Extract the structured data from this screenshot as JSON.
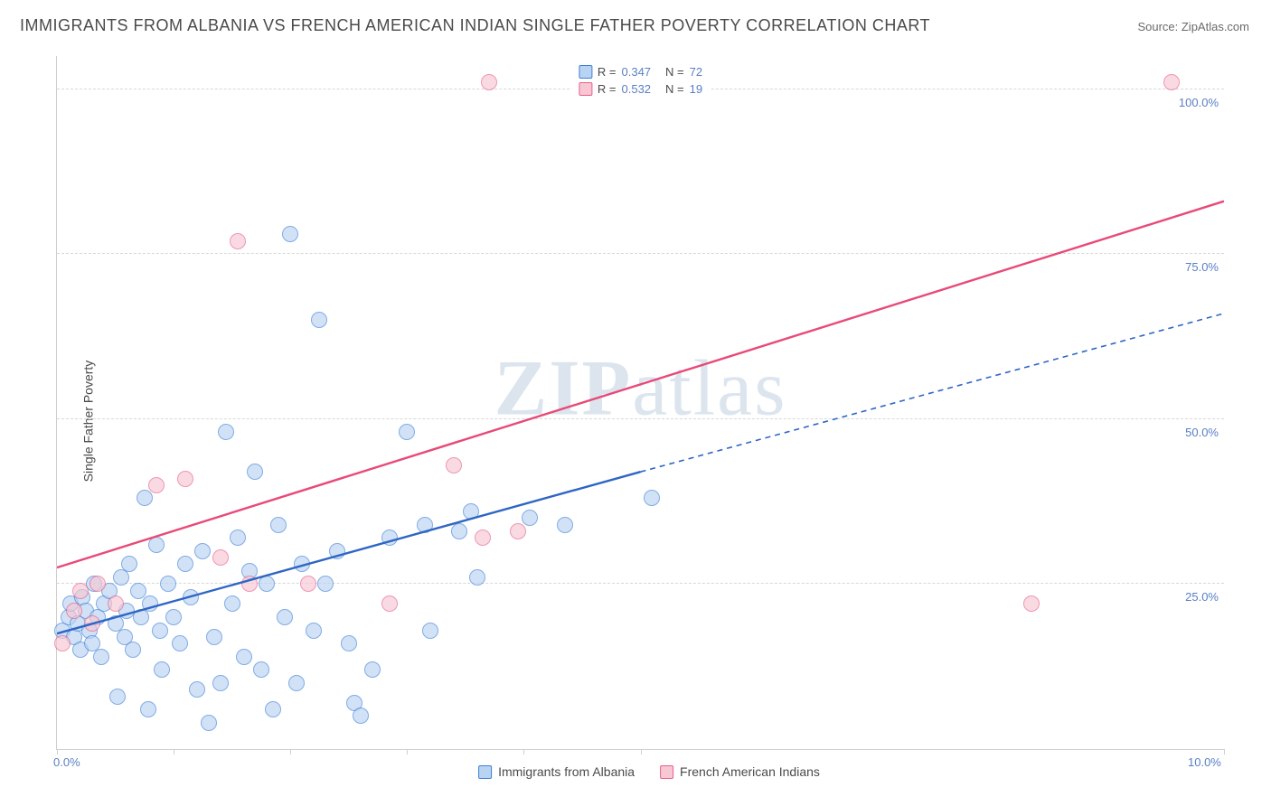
{
  "title": "IMMIGRANTS FROM ALBANIA VS FRENCH AMERICAN INDIAN SINGLE FATHER POVERTY CORRELATION CHART",
  "source_label": "Source: ",
  "source_name": "ZipAtlas.com",
  "watermark_bold": "ZIP",
  "watermark_light": "atlas",
  "chart": {
    "type": "scatter",
    "y_axis_title": "Single Father Poverty",
    "background_color": "#ffffff",
    "grid_color": "#d8d8d8",
    "axis_color": "#cfcfcf",
    "xlim": [
      0,
      10
    ],
    "ylim": [
      0,
      105
    ],
    "x_ticks": [
      0,
      1,
      2,
      3,
      4,
      5,
      10
    ],
    "x_tick_labels": {
      "0": "0.0%",
      "10": "10.0%"
    },
    "y_grid": [
      25,
      50,
      75,
      100
    ],
    "y_tick_labels": {
      "25": "25.0%",
      "50": "50.0%",
      "75": "75.0%",
      "100": "100.0%"
    },
    "label_color": "#5a7fc4",
    "label_fontsize": 13,
    "legend_top": [
      {
        "swatch_fill": "#b9d4f3",
        "swatch_stroke": "#3f7fd6",
        "r_label": "R = ",
        "r_value": "0.347",
        "n_label": "N = ",
        "n_value": "72"
      },
      {
        "swatch_fill": "#f7c7d3",
        "swatch_stroke": "#e85f87",
        "r_label": "R = ",
        "r_value": "0.532",
        "n_label": "N = ",
        "n_value": "19"
      }
    ],
    "legend_bottom": [
      {
        "swatch_fill": "#b9d4f3",
        "swatch_stroke": "#3f7fd6",
        "label": "Immigrants from Albania"
      },
      {
        "swatch_fill": "#f7c7d3",
        "swatch_stroke": "#e85f87",
        "label": "French American Indians"
      }
    ],
    "series": [
      {
        "name": "albania",
        "marker_fill": "#b9d4f3",
        "marker_stroke": "#3f7fd6",
        "marker_fill_opacity": 0.65,
        "marker_radius": 9,
        "trend": {
          "solid": {
            "x1": 0,
            "y1": 17.5,
            "x2": 5,
            "y2": 42,
            "stroke": "#2f66c4",
            "width": 2.4
          },
          "dashed": {
            "x1": 5,
            "y1": 42,
            "x2": 10,
            "y2": 66,
            "stroke": "#2f66c4",
            "width": 1.6,
            "dash": "6,5"
          }
        },
        "points": [
          [
            0.05,
            18
          ],
          [
            0.1,
            20
          ],
          [
            0.12,
            22
          ],
          [
            0.15,
            17
          ],
          [
            0.18,
            19
          ],
          [
            0.2,
            15
          ],
          [
            0.22,
            23
          ],
          [
            0.25,
            21
          ],
          [
            0.28,
            18
          ],
          [
            0.3,
            16
          ],
          [
            0.32,
            25
          ],
          [
            0.35,
            20
          ],
          [
            0.38,
            14
          ],
          [
            0.4,
            22
          ],
          [
            0.45,
            24
          ],
          [
            0.5,
            19
          ],
          [
            0.52,
            8
          ],
          [
            0.55,
            26
          ],
          [
            0.58,
            17
          ],
          [
            0.6,
            21
          ],
          [
            0.62,
            28
          ],
          [
            0.65,
            15
          ],
          [
            0.7,
            24
          ],
          [
            0.72,
            20
          ],
          [
            0.75,
            38
          ],
          [
            0.78,
            6
          ],
          [
            0.8,
            22
          ],
          [
            0.85,
            31
          ],
          [
            0.88,
            18
          ],
          [
            0.9,
            12
          ],
          [
            0.95,
            25
          ],
          [
            1.0,
            20
          ],
          [
            1.05,
            16
          ],
          [
            1.1,
            28
          ],
          [
            1.15,
            23
          ],
          [
            1.2,
            9
          ],
          [
            1.25,
            30
          ],
          [
            1.3,
            4
          ],
          [
            1.35,
            17
          ],
          [
            1.4,
            10
          ],
          [
            1.45,
            48
          ],
          [
            1.5,
            22
          ],
          [
            1.55,
            32
          ],
          [
            1.6,
            14
          ],
          [
            1.65,
            27
          ],
          [
            1.7,
            42
          ],
          [
            1.75,
            12
          ],
          [
            1.8,
            25
          ],
          [
            1.85,
            6
          ],
          [
            1.9,
            34
          ],
          [
            1.95,
            20
          ],
          [
            2.0,
            78
          ],
          [
            2.05,
            10
          ],
          [
            2.1,
            28
          ],
          [
            2.2,
            18
          ],
          [
            2.25,
            65
          ],
          [
            2.3,
            25
          ],
          [
            2.4,
            30
          ],
          [
            2.5,
            16
          ],
          [
            2.55,
            7
          ],
          [
            2.6,
            5
          ],
          [
            2.7,
            12
          ],
          [
            2.85,
            32
          ],
          [
            3.0,
            48
          ],
          [
            3.15,
            34
          ],
          [
            3.2,
            18
          ],
          [
            3.45,
            33
          ],
          [
            3.55,
            36
          ],
          [
            3.6,
            26
          ],
          [
            4.05,
            35
          ],
          [
            4.35,
            34
          ],
          [
            5.1,
            38
          ]
        ]
      },
      {
        "name": "french_american_indian",
        "marker_fill": "#f7c7d3",
        "marker_stroke": "#e85f87",
        "marker_fill_opacity": 0.65,
        "marker_radius": 9,
        "trend": {
          "solid": {
            "x1": 0,
            "y1": 27.5,
            "x2": 10,
            "y2": 83,
            "stroke": "#e84a77",
            "width": 2.4
          }
        },
        "points": [
          [
            0.05,
            16
          ],
          [
            0.15,
            21
          ],
          [
            0.2,
            24
          ],
          [
            0.3,
            19
          ],
          [
            0.35,
            25
          ],
          [
            0.5,
            22
          ],
          [
            0.85,
            40
          ],
          [
            1.1,
            41
          ],
          [
            1.4,
            29
          ],
          [
            1.55,
            77
          ],
          [
            1.65,
            25
          ],
          [
            2.15,
            25
          ],
          [
            2.85,
            22
          ],
          [
            3.4,
            43
          ],
          [
            3.65,
            32
          ],
          [
            3.95,
            33
          ],
          [
            3.7,
            101
          ],
          [
            8.35,
            22
          ],
          [
            9.55,
            101
          ]
        ]
      }
    ]
  }
}
